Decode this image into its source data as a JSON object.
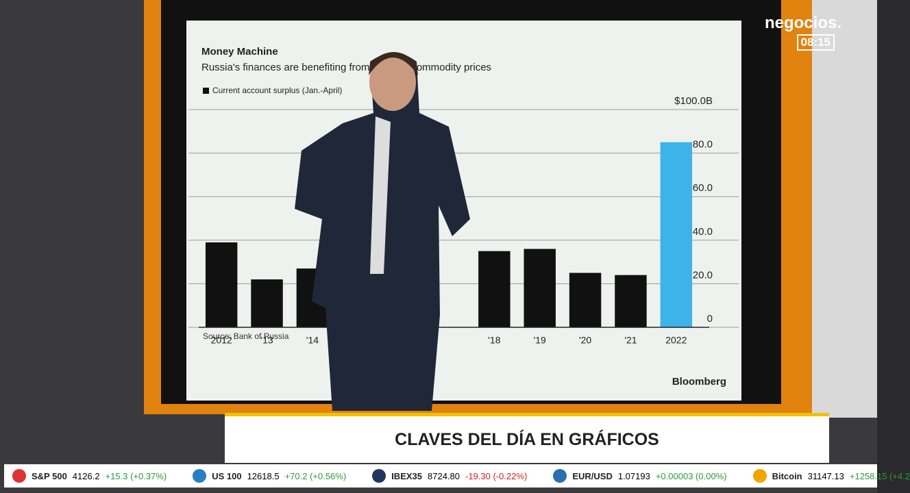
{
  "header": {
    "logo": "negocios.",
    "time": "08:15"
  },
  "chart_data": {
    "type": "bar",
    "title": "Money Machine",
    "subtitle": "Russia's finances are benefiting from a rise in commodity prices",
    "legend": "Current account surplus (Jan.-April)",
    "source": "Source: Bank of Russia",
    "brand": "Bloomberg",
    "categories": [
      "2012",
      "'13",
      "'14",
      null,
      null,
      null,
      "'18",
      "'19",
      "'20",
      "'21",
      "2022"
    ],
    "values": [
      39,
      22,
      27,
      null,
      null,
      null,
      35,
      36,
      25,
      24,
      85
    ],
    "colors": [
      "#111111",
      "#111111",
      "#111111",
      "#111111",
      "#111111",
      "#111111",
      "#111111",
      "#111111",
      "#111111",
      "#111111",
      "#3cb4ea"
    ],
    "ylim": [
      0,
      100
    ],
    "yticks": [
      0,
      {
        "value": 20,
        "label": "20.0"
      },
      {
        "value": 40,
        "label": "40.0"
      },
      {
        "value": 60,
        "label": "60.0"
      },
      {
        "value": 80,
        "label": "80.0"
      },
      {
        "value": 100,
        "label": "$100.0B"
      }
    ],
    "grid": true
  },
  "lower_third": {
    "title": "CLAVES DEL DÍA EN GRÁFICOS"
  },
  "ticker": [
    {
      "name": "S&P 500",
      "price": "4126.2",
      "change": "+15.3 (+0.37%)"
    },
    {
      "name": "US 100",
      "price": "12618.5",
      "change": "+70.2 (+0.56%)"
    },
    {
      "name": "IBEX35",
      "price": "8724.80",
      "change": "-19.30 (-0.22%)"
    },
    {
      "name": "EUR/USD",
      "price": "1.07193",
      "change": "+0.00003 (0.00%)"
    },
    {
      "name": "Bitcoin",
      "price": "31147.13",
      "change": "+1258.15 (+4.2"
    }
  ]
}
